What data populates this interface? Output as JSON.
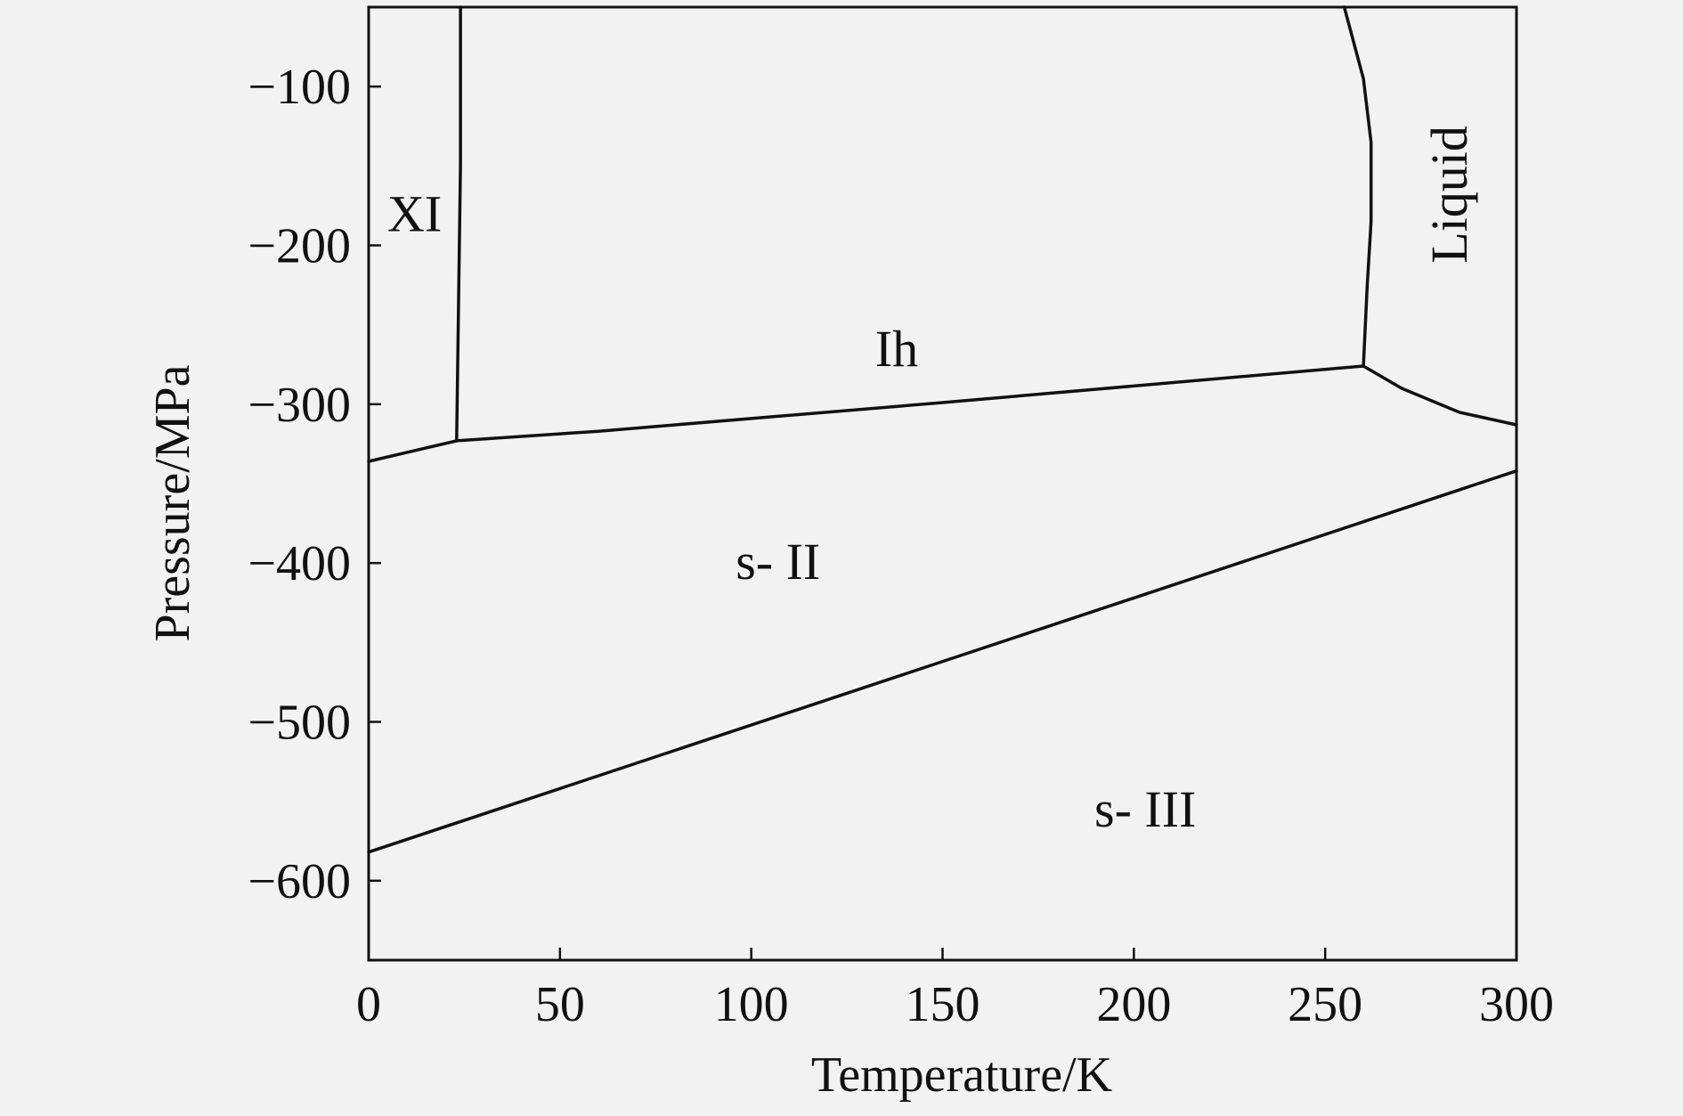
{
  "chart_data": {
    "type": "line",
    "title": "",
    "xlabel": "Temperature/K",
    "ylabel": "Pressure/MPa",
    "xlim": [
      0,
      300
    ],
    "ylim": [
      -650,
      -50
    ],
    "xticks": [
      0,
      50,
      100,
      150,
      200,
      250,
      300
    ],
    "yticks": [
      -100,
      -200,
      -300,
      -400,
      -500,
      -600
    ],
    "tick_labels": {
      "x": [
        "0",
        "50",
        "100",
        "150",
        "200",
        "250",
        "300"
      ],
      "y": [
        "−100",
        "−200",
        "−300",
        "−400",
        "−500",
        "−600"
      ]
    },
    "grid": false,
    "line_color": "#111111",
    "background": "#f2f2f2",
    "series": [
      {
        "x": [
          24,
          24,
          23
        ],
        "y": [
          -50,
          -150,
          -323
        ]
      },
      {
        "x": [
          0,
          23,
          60,
          150,
          260
        ],
        "y": [
          -336,
          -323,
          -317,
          -299,
          -276
        ]
      },
      {
        "x": [
          255,
          260,
          262,
          262,
          261,
          260
        ],
        "y": [
          -50,
          -95,
          -135,
          -185,
          -225,
          -276
        ]
      },
      {
        "x": [
          260,
          270,
          285,
          300
        ],
        "y": [
          -276,
          -290,
          -305,
          -313
        ]
      },
      {
        "x": [
          0,
          300
        ],
        "y": [
          -582,
          -342
        ]
      }
    ],
    "annotations": [
      {
        "text": "XI",
        "x": 12,
        "y": -191
      },
      {
        "text": "Ih",
        "x": 138,
        "y": -276
      },
      {
        "text": "Liquid",
        "x": 287,
        "y": -168,
        "rotation": -90
      },
      {
        "text": "s- II",
        "x": 107,
        "y": -410
      },
      {
        "text": "s- III",
        "x": 203,
        "y": -566
      }
    ]
  }
}
